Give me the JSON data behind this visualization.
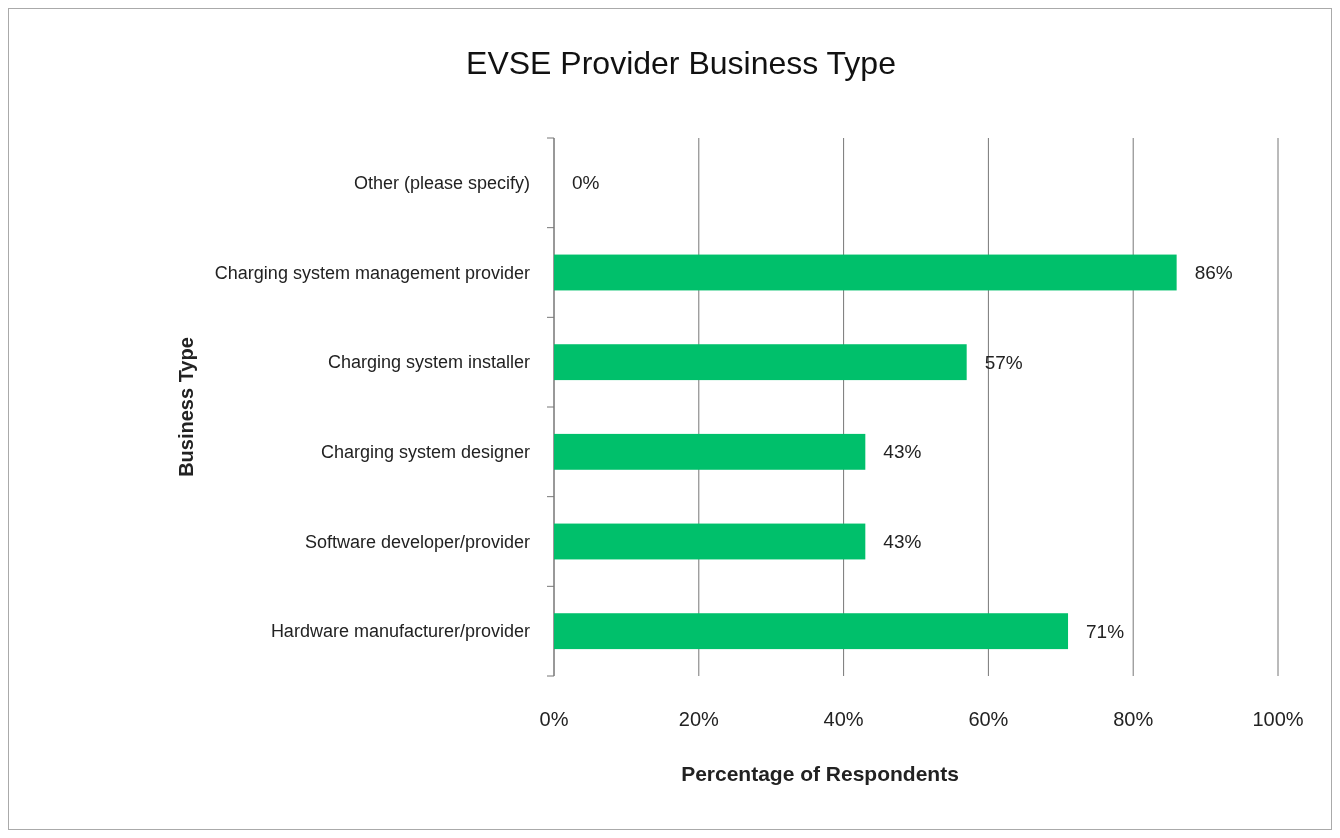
{
  "chart_data": {
    "type": "bar",
    "orientation": "horizontal",
    "title": "EVSE Provider Business Type",
    "xlabel": "Percentage of Respondents",
    "ylabel": "Business Type",
    "categories": [
      "Other (please specify)",
      "Charging system management provider",
      "Charging system installer",
      "Charging system designer",
      "Software developer/provider",
      "Hardware manufacturer/provider"
    ],
    "values": [
      0,
      86,
      57,
      43,
      43,
      71
    ],
    "value_labels": [
      "0%",
      "86%",
      "57%",
      "43%",
      "43%",
      "71%"
    ],
    "color": "#00c06b",
    "xlim": [
      0,
      100
    ],
    "xticks": [
      {
        "value": 0,
        "label": "0%"
      },
      {
        "value": 20,
        "label": "20%"
      },
      {
        "value": 40,
        "label": "40%"
      },
      {
        "value": 60,
        "label": "60%"
      },
      {
        "value": 80,
        "label": "80%"
      },
      {
        "value": 100,
        "label": "100%"
      }
    ],
    "grid": "x"
  }
}
